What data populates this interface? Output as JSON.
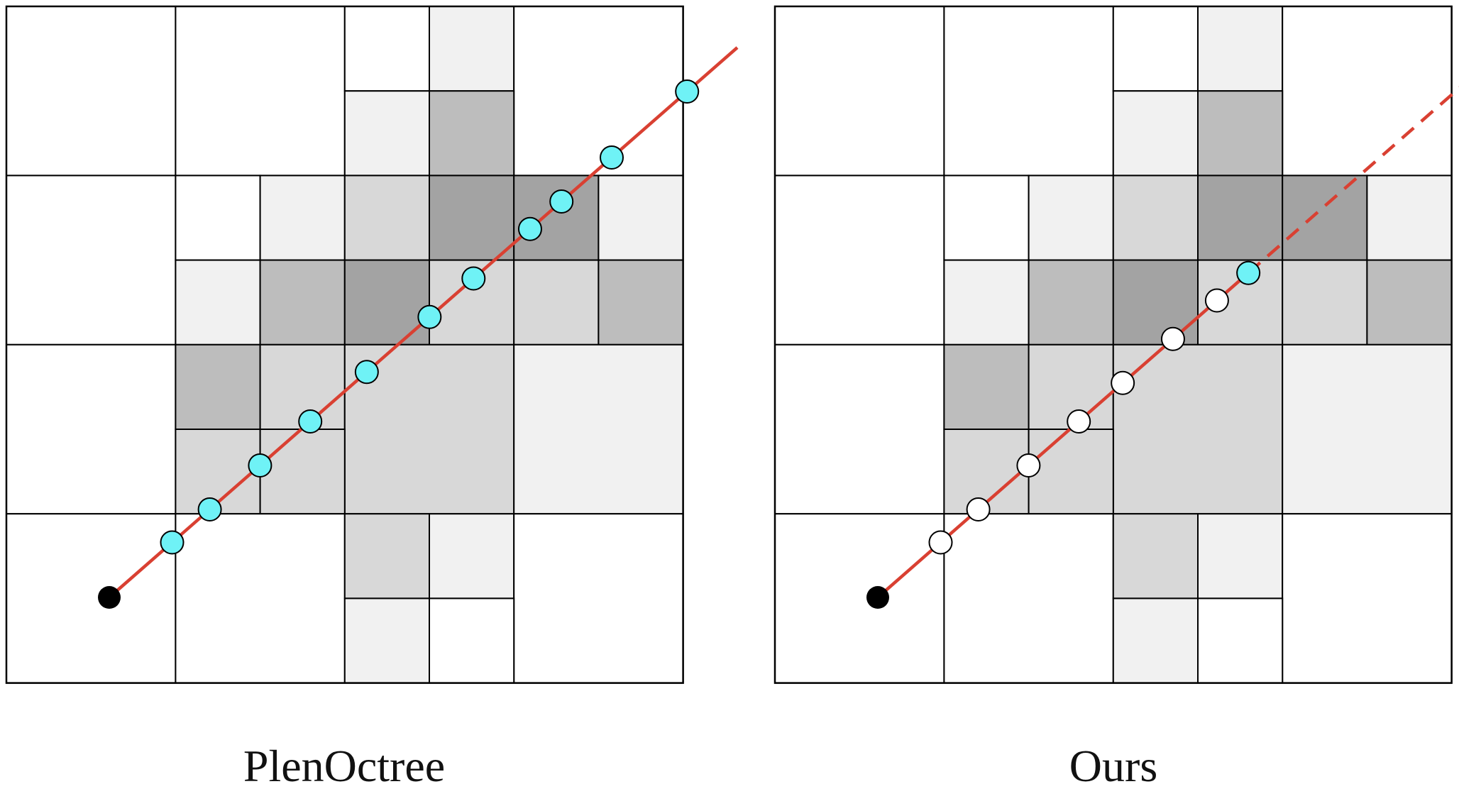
{
  "panels": [
    {
      "caption": "PlenOctree",
      "ray_extends": "solid",
      "samples": [
        {
          "t": 0.1,
          "fill": "cyan"
        },
        {
          "t": 0.16,
          "fill": "cyan"
        },
        {
          "t": 0.24,
          "fill": "cyan"
        },
        {
          "t": 0.32,
          "fill": "cyan"
        },
        {
          "t": 0.41,
          "fill": "cyan"
        },
        {
          "t": 0.51,
          "fill": "cyan"
        },
        {
          "t": 0.58,
          "fill": "cyan"
        },
        {
          "t": 0.67,
          "fill": "cyan"
        },
        {
          "t": 0.72,
          "fill": "cyan"
        },
        {
          "t": 0.8,
          "fill": "cyan"
        },
        {
          "t": 0.92,
          "fill": "cyan"
        }
      ]
    },
    {
      "caption": "Ours",
      "ray_extends": "dashed",
      "samples": [
        {
          "t": 0.1,
          "fill": "white"
        },
        {
          "t": 0.16,
          "fill": "white"
        },
        {
          "t": 0.24,
          "fill": "white"
        },
        {
          "t": 0.32,
          "fill": "white"
        },
        {
          "t": 0.39,
          "fill": "white"
        },
        {
          "t": 0.47,
          "fill": "white"
        },
        {
          "t": 0.54,
          "fill": "white"
        },
        {
          "t": 0.59,
          "fill": "cyan"
        }
      ]
    }
  ],
  "colors": {
    "ray": "#d94032",
    "sample_cyan": "#6ff2f6",
    "sample_white": "#ffffff",
    "origin": "#000000",
    "grid_line": "#000000",
    "shade_1": "#f1f1f1",
    "shade_2": "#d8d8d8",
    "shade_3": "#bdbdbd",
    "shade_4": "#a3a3a3"
  }
}
